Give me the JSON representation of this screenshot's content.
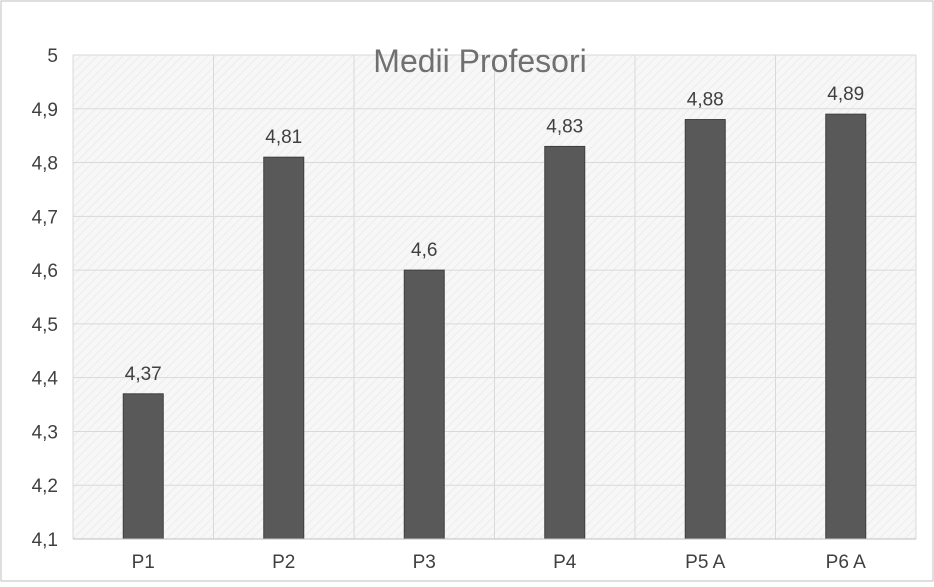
{
  "chart_data": {
    "type": "bar",
    "title": "Medii Profesori",
    "xlabel": "",
    "ylabel": "",
    "categories": [
      "P1",
      "P2",
      "P3",
      "P4",
      "P5 A",
      "P6 A"
    ],
    "values": [
      4.37,
      4.81,
      4.6,
      4.83,
      4.88,
      4.89
    ],
    "data_labels": [
      "4,37",
      "4,81",
      "4,6",
      "4,83",
      "4,88",
      "4,89"
    ],
    "ylim": [
      4.1,
      5
    ],
    "y_ticks": [
      4.1,
      4.2,
      4.3,
      4.4,
      4.5,
      4.6,
      4.7,
      4.8,
      4.9,
      5
    ],
    "y_tick_labels": [
      "4,1",
      "4,2",
      "4,3",
      "4,4",
      "4,5",
      "4,6",
      "4,7",
      "4,8",
      "4,9",
      "5"
    ],
    "grid": true,
    "legend": "none",
    "colors": {
      "bar": "#595959",
      "bar_edge": "#3f3f3f",
      "grid": "#d9d9d9",
      "text": "#404040",
      "title": "#707070",
      "border": "#bfbfbf"
    }
  }
}
